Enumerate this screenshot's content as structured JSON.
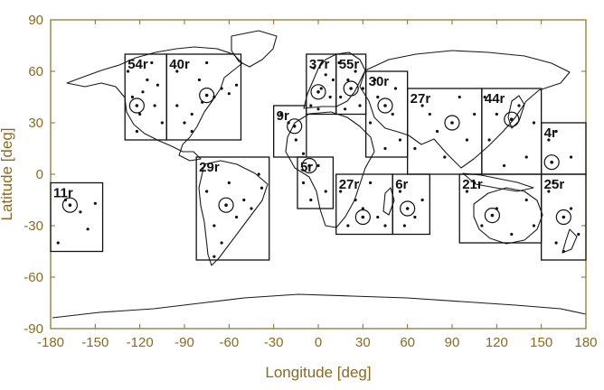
{
  "chart_data": {
    "type": "scatter",
    "xlabel": "Longitude [deg]",
    "ylabel": "Latitude [deg]",
    "xlim": [
      -180,
      180
    ],
    "ylim": [
      -90,
      90
    ],
    "xticks": [
      -180,
      -150,
      -120,
      -90,
      -60,
      -30,
      0,
      30,
      60,
      90,
      120,
      150,
      180
    ],
    "yticks": [
      -90,
      -60,
      -30,
      0,
      30,
      60,
      90
    ],
    "grid": false,
    "colors": {
      "axis": "#8a6a20",
      "map": "#1a1a1a",
      "boxes": "#111111"
    },
    "regions": [
      {
        "label": "11r",
        "lon": [
          -180,
          -145
        ],
        "lat": [
          -45,
          -5
        ],
        "center": [
          -167,
          -18
        ]
      },
      {
        "label": "54r",
        "lon": [
          -130,
          -102
        ],
        "lat": [
          20,
          70
        ],
        "center": [
          -122,
          40
        ]
      },
      {
        "label": "40r",
        "lon": [
          -102,
          -52
        ],
        "lat": [
          20,
          70
        ],
        "center": [
          -75,
          46
        ]
      },
      {
        "label": "29r",
        "lon": [
          -82,
          -33
        ],
        "lat": [
          -50,
          10
        ],
        "center": [
          -62,
          -18
        ]
      },
      {
        "label": "9r",
        "lon": [
          -30,
          -8
        ],
        "lat": [
          10,
          40
        ],
        "center": [
          -16,
          28
        ]
      },
      {
        "label": "5r",
        "lon": [
          -14,
          10
        ],
        "lat": [
          -20,
          10
        ],
        "center": [
          -6,
          5
        ]
      },
      {
        "label": "37r",
        "lon": [
          -8,
          12
        ],
        "lat": [
          35,
          70
        ],
        "center": [
          0,
          48
        ]
      },
      {
        "label": "55r",
        "lon": [
          12,
          32
        ],
        "lat": [
          35,
          70
        ],
        "center": [
          22,
          50
        ]
      },
      {
        "label": "30r",
        "lon": [
          32,
          60
        ],
        "lat": [
          10,
          60
        ],
        "center": [
          45,
          40
        ]
      },
      {
        "label": "27r",
        "lon": [
          12,
          50
        ],
        "lat": [
          -35,
          0
        ],
        "center": [
          30,
          -25
        ]
      },
      {
        "label": "6r",
        "lon": [
          50,
          75
        ],
        "lat": [
          -35,
          0
        ],
        "center": [
          60,
          -20
        ]
      },
      {
        "label": "27r",
        "lon": [
          60,
          110
        ],
        "lat": [
          0,
          50
        ],
        "center": [
          90,
          30
        ]
      },
      {
        "label": "44r",
        "lon": [
          110,
          150
        ],
        "lat": [
          0,
          50
        ],
        "center": [
          130,
          32
        ]
      },
      {
        "label": "4r",
        "lon": [
          150,
          180
        ],
        "lat": [
          0,
          30
        ],
        "center": [
          157,
          7
        ]
      },
      {
        "label": "21r",
        "lon": [
          95,
          150
        ],
        "lat": [
          -40,
          0
        ],
        "center": [
          117,
          -24
        ]
      },
      {
        "label": "25r",
        "lon": [
          150,
          180
        ],
        "lat": [
          -50,
          0
        ],
        "center": [
          165,
          -25
        ]
      }
    ],
    "stations": [
      [
        -170,
        -15
      ],
      [
        -160,
        -22
      ],
      [
        -150,
        -17
      ],
      [
        -175,
        -40
      ],
      [
        -155,
        -32
      ],
      [
        -125,
        45
      ],
      [
        -120,
        35
      ],
      [
        -118,
        48
      ],
      [
        -110,
        40
      ],
      [
        -105,
        30
      ],
      [
        -115,
        55
      ],
      [
        -128,
        60
      ],
      [
        -108,
        52
      ],
      [
        -122,
        25
      ],
      [
        -112,
        65
      ],
      [
        -95,
        40
      ],
      [
        -85,
        35
      ],
      [
        -78,
        42
      ],
      [
        -70,
        45
      ],
      [
        -90,
        30
      ],
      [
        -80,
        55
      ],
      [
        -65,
        50
      ],
      [
        -95,
        60
      ],
      [
        -60,
        47
      ],
      [
        -85,
        25
      ],
      [
        -75,
        65
      ],
      [
        -55,
        52
      ],
      [
        -75,
        -10
      ],
      [
        -70,
        -30
      ],
      [
        -60,
        -5
      ],
      [
        -50,
        -15
      ],
      [
        -65,
        -40
      ],
      [
        -45,
        -20
      ],
      [
        -55,
        -25
      ],
      [
        -40,
        0
      ],
      [
        -70,
        -48
      ],
      [
        -38,
        -8
      ],
      [
        -20,
        30
      ],
      [
        -15,
        20
      ],
      [
        -25,
        35
      ],
      [
        -10,
        12
      ],
      [
        -10,
        -5
      ],
      [
        0,
        5
      ],
      [
        5,
        -10
      ],
      [
        -5,
        -15
      ],
      [
        -5,
        40
      ],
      [
        2,
        50
      ],
      [
        5,
        58
      ],
      [
        -3,
        62
      ],
      [
        8,
        45
      ],
      [
        0,
        38
      ],
      [
        10,
        55
      ],
      [
        15,
        45
      ],
      [
        20,
        55
      ],
      [
        25,
        60
      ],
      [
        28,
        40
      ],
      [
        18,
        38
      ],
      [
        30,
        50
      ],
      [
        14,
        65
      ],
      [
        35,
        30
      ],
      [
        40,
        45
      ],
      [
        50,
        35
      ],
      [
        55,
        20
      ],
      [
        45,
        15
      ],
      [
        38,
        55
      ],
      [
        52,
        50
      ],
      [
        20,
        -30
      ],
      [
        25,
        -15
      ],
      [
        35,
        -5
      ],
      [
        30,
        -20
      ],
      [
        15,
        -10
      ],
      [
        40,
        -25
      ],
      [
        45,
        -30
      ],
      [
        55,
        -10
      ],
      [
        65,
        -25
      ],
      [
        58,
        -30
      ],
      [
        70,
        -15
      ],
      [
        70,
        40
      ],
      [
        80,
        25
      ],
      [
        95,
        45
      ],
      [
        100,
        20
      ],
      [
        85,
        10
      ],
      [
        75,
        35
      ],
      [
        105,
        35
      ],
      [
        65,
        15
      ],
      [
        115,
        20
      ],
      [
        120,
        35
      ],
      [
        135,
        40
      ],
      [
        140,
        10
      ],
      [
        125,
        5
      ],
      [
        145,
        30
      ],
      [
        112,
        45
      ],
      [
        155,
        20
      ],
      [
        170,
        10
      ],
      [
        160,
        25
      ],
      [
        100,
        -10
      ],
      [
        110,
        -30
      ],
      [
        120,
        -20
      ],
      [
        130,
        -35
      ],
      [
        140,
        -15
      ],
      [
        145,
        -30
      ],
      [
        105,
        -5
      ],
      [
        155,
        -10
      ],
      [
        170,
        -20
      ],
      [
        160,
        -40
      ],
      [
        175,
        -35
      ],
      [
        165,
        -45
      ],
      [
        158,
        -5
      ]
    ]
  }
}
